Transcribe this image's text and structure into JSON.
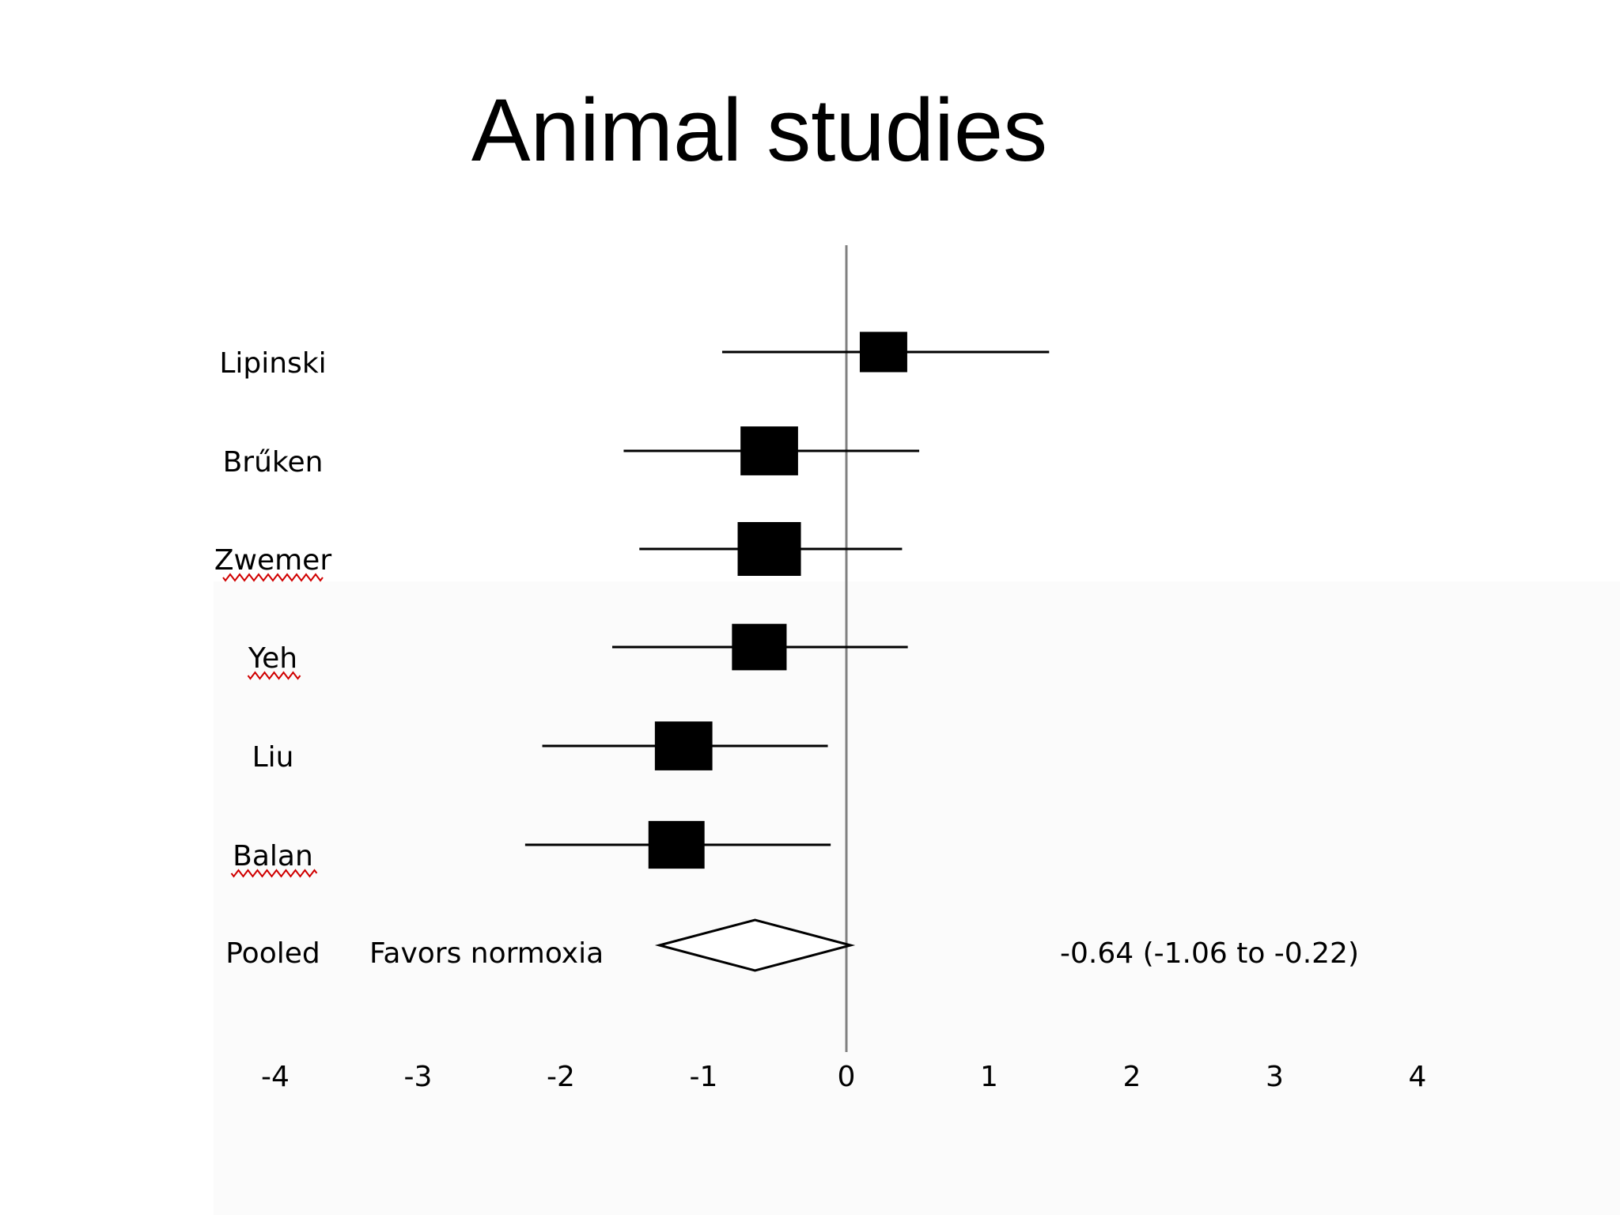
{
  "title": "Animal studies",
  "chart_data": {
    "type": "forest",
    "xlim": [
      -4,
      4
    ],
    "xticks": [
      -4,
      -3,
      -2,
      -1,
      0,
      1,
      2,
      3,
      4
    ],
    "reference_line": 0,
    "studies": [
      {
        "name": "Lipinski",
        "estimate": 0.26,
        "lower": -0.87,
        "upper": 1.42,
        "weight": 0.33,
        "misspelled_underline": false
      },
      {
        "name": "Brűken",
        "estimate": -0.54,
        "lower": -1.56,
        "upper": 0.51,
        "weight": 0.4,
        "misspelled_underline": false
      },
      {
        "name": "Zwemer",
        "estimate": -0.54,
        "lower": -1.45,
        "upper": 0.39,
        "weight": 0.44,
        "misspelled_underline": true
      },
      {
        "name": "Yeh",
        "estimate": -0.61,
        "lower": -1.64,
        "upper": 0.43,
        "weight": 0.38,
        "misspelled_underline": true
      },
      {
        "name": "Liu",
        "estimate": -1.14,
        "lower": -2.13,
        "upper": -0.13,
        "weight": 0.4,
        "misspelled_underline": false
      },
      {
        "name": "Balan",
        "estimate": -1.19,
        "lower": -2.25,
        "upper": -0.11,
        "weight": 0.39,
        "misspelled_underline": true
      }
    ],
    "pooled": {
      "label": "Pooled",
      "estimate": -0.64,
      "lower": -1.06,
      "upper": -0.22,
      "text": "-0.64 (-1.06 to -0.22)"
    },
    "favors_label": "Favors normoxia"
  }
}
